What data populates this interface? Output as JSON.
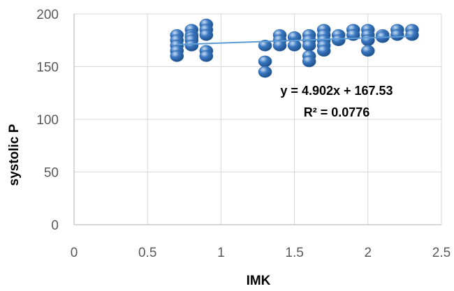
{
  "chart_data": {
    "type": "scatter",
    "xlabel": "IMK",
    "ylabel": "systolic P",
    "xlim": [
      0,
      2.5
    ],
    "ylim": [
      0,
      200
    ],
    "x_ticks": [
      "0",
      "0.5",
      "1",
      "1.5",
      "2",
      "2.5"
    ],
    "y_ticks": [
      "0",
      "50",
      "100",
      "150",
      "200"
    ],
    "x_tick_values": [
      0,
      0.5,
      1,
      1.5,
      2,
      2.5
    ],
    "y_tick_values": [
      0,
      50,
      100,
      150,
      200
    ],
    "grid": true,
    "legend": "none",
    "series": [
      {
        "color": "#3a78c2",
        "points": [
          {
            "x": 0.7,
            "y": 180
          },
          {
            "x": 0.7,
            "y": 175
          },
          {
            "x": 0.7,
            "y": 170
          },
          {
            "x": 0.7,
            "y": 165
          },
          {
            "x": 0.7,
            "y": 160
          },
          {
            "x": 0.8,
            "y": 185
          },
          {
            "x": 0.8,
            "y": 180
          },
          {
            "x": 0.8,
            "y": 178
          },
          {
            "x": 0.8,
            "y": 175
          },
          {
            "x": 0.8,
            "y": 170
          },
          {
            "x": 0.9,
            "y": 190
          },
          {
            "x": 0.9,
            "y": 185
          },
          {
            "x": 0.9,
            "y": 180
          },
          {
            "x": 0.9,
            "y": 165
          },
          {
            "x": 0.9,
            "y": 160
          },
          {
            "x": 1.3,
            "y": 170
          },
          {
            "x": 1.3,
            "y": 155
          },
          {
            "x": 1.3,
            "y": 145
          },
          {
            "x": 1.4,
            "y": 180
          },
          {
            "x": 1.4,
            "y": 175
          },
          {
            "x": 1.4,
            "y": 170
          },
          {
            "x": 1.5,
            "y": 178
          },
          {
            "x": 1.5,
            "y": 170
          },
          {
            "x": 1.6,
            "y": 180
          },
          {
            "x": 1.6,
            "y": 175
          },
          {
            "x": 1.6,
            "y": 170
          },
          {
            "x": 1.6,
            "y": 160
          },
          {
            "x": 1.6,
            "y": 155
          },
          {
            "x": 1.7,
            "y": 185
          },
          {
            "x": 1.7,
            "y": 180
          },
          {
            "x": 1.7,
            "y": 175
          },
          {
            "x": 1.7,
            "y": 170
          },
          {
            "x": 1.7,
            "y": 165
          },
          {
            "x": 1.8,
            "y": 180
          },
          {
            "x": 1.8,
            "y": 175
          },
          {
            "x": 1.9,
            "y": 185
          },
          {
            "x": 1.9,
            "y": 180
          },
          {
            "x": 2.0,
            "y": 185
          },
          {
            "x": 2.0,
            "y": 180
          },
          {
            "x": 2.0,
            "y": 175
          },
          {
            "x": 2.0,
            "y": 165
          },
          {
            "x": 2.1,
            "y": 180
          },
          {
            "x": 2.1,
            "y": 178
          },
          {
            "x": 2.2,
            "y": 185
          },
          {
            "x": 2.2,
            "y": 180
          },
          {
            "x": 2.3,
            "y": 185
          },
          {
            "x": 2.3,
            "y": 180
          }
        ]
      }
    ],
    "trendline": {
      "type": "linear",
      "slope": 4.902,
      "intercept": 167.53,
      "x_range": [
        0.7,
        2.3
      ],
      "color": "#5b9bd5",
      "equation_label": "y = 4.902x + 167.53",
      "r2_label": "R² = 0.0776"
    }
  }
}
